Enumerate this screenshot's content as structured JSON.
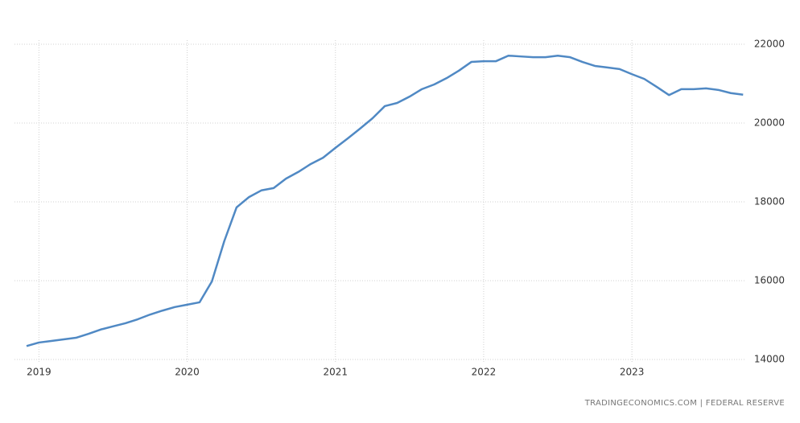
{
  "chart_data": {
    "type": "line",
    "categories": [
      null,
      "2019",
      null,
      null,
      null,
      null,
      null,
      null,
      null,
      null,
      null,
      null,
      null,
      "2020",
      null,
      null,
      null,
      null,
      null,
      null,
      null,
      null,
      null,
      null,
      null,
      "2021",
      null,
      null,
      null,
      null,
      null,
      null,
      null,
      null,
      null,
      null,
      null,
      "2022",
      null,
      null,
      null,
      null,
      null,
      null,
      null,
      null,
      null,
      null,
      null,
      "2023",
      null,
      null,
      null,
      null,
      null,
      null,
      null,
      null,
      null
    ],
    "values": [
      14340,
      14430,
      14470,
      14510,
      14550,
      14650,
      14760,
      14840,
      14920,
      15020,
      15140,
      15240,
      15330,
      15390,
      15450,
      15980,
      17000,
      17860,
      18120,
      18290,
      18350,
      18590,
      18760,
      18960,
      19120,
      19370,
      19610,
      19860,
      20120,
      20430,
      20510,
      20670,
      20860,
      20980,
      21140,
      21330,
      21550,
      21570,
      21570,
      21710,
      21690,
      21670,
      21670,
      21710,
      21670,
      21550,
      21450,
      21410,
      21370,
      21240,
      21120,
      20920,
      20710,
      20860,
      20860,
      20880,
      20840,
      20760,
      20720
    ],
    "color": "#5089c4",
    "ylim": [
      14000,
      22000
    ],
    "yticks": [
      14000,
      16000,
      18000,
      20000,
      22000
    ],
    "grid": true,
    "source": "TRADINGECONOMICS.COM  |  FEDERAL RESERVE"
  }
}
